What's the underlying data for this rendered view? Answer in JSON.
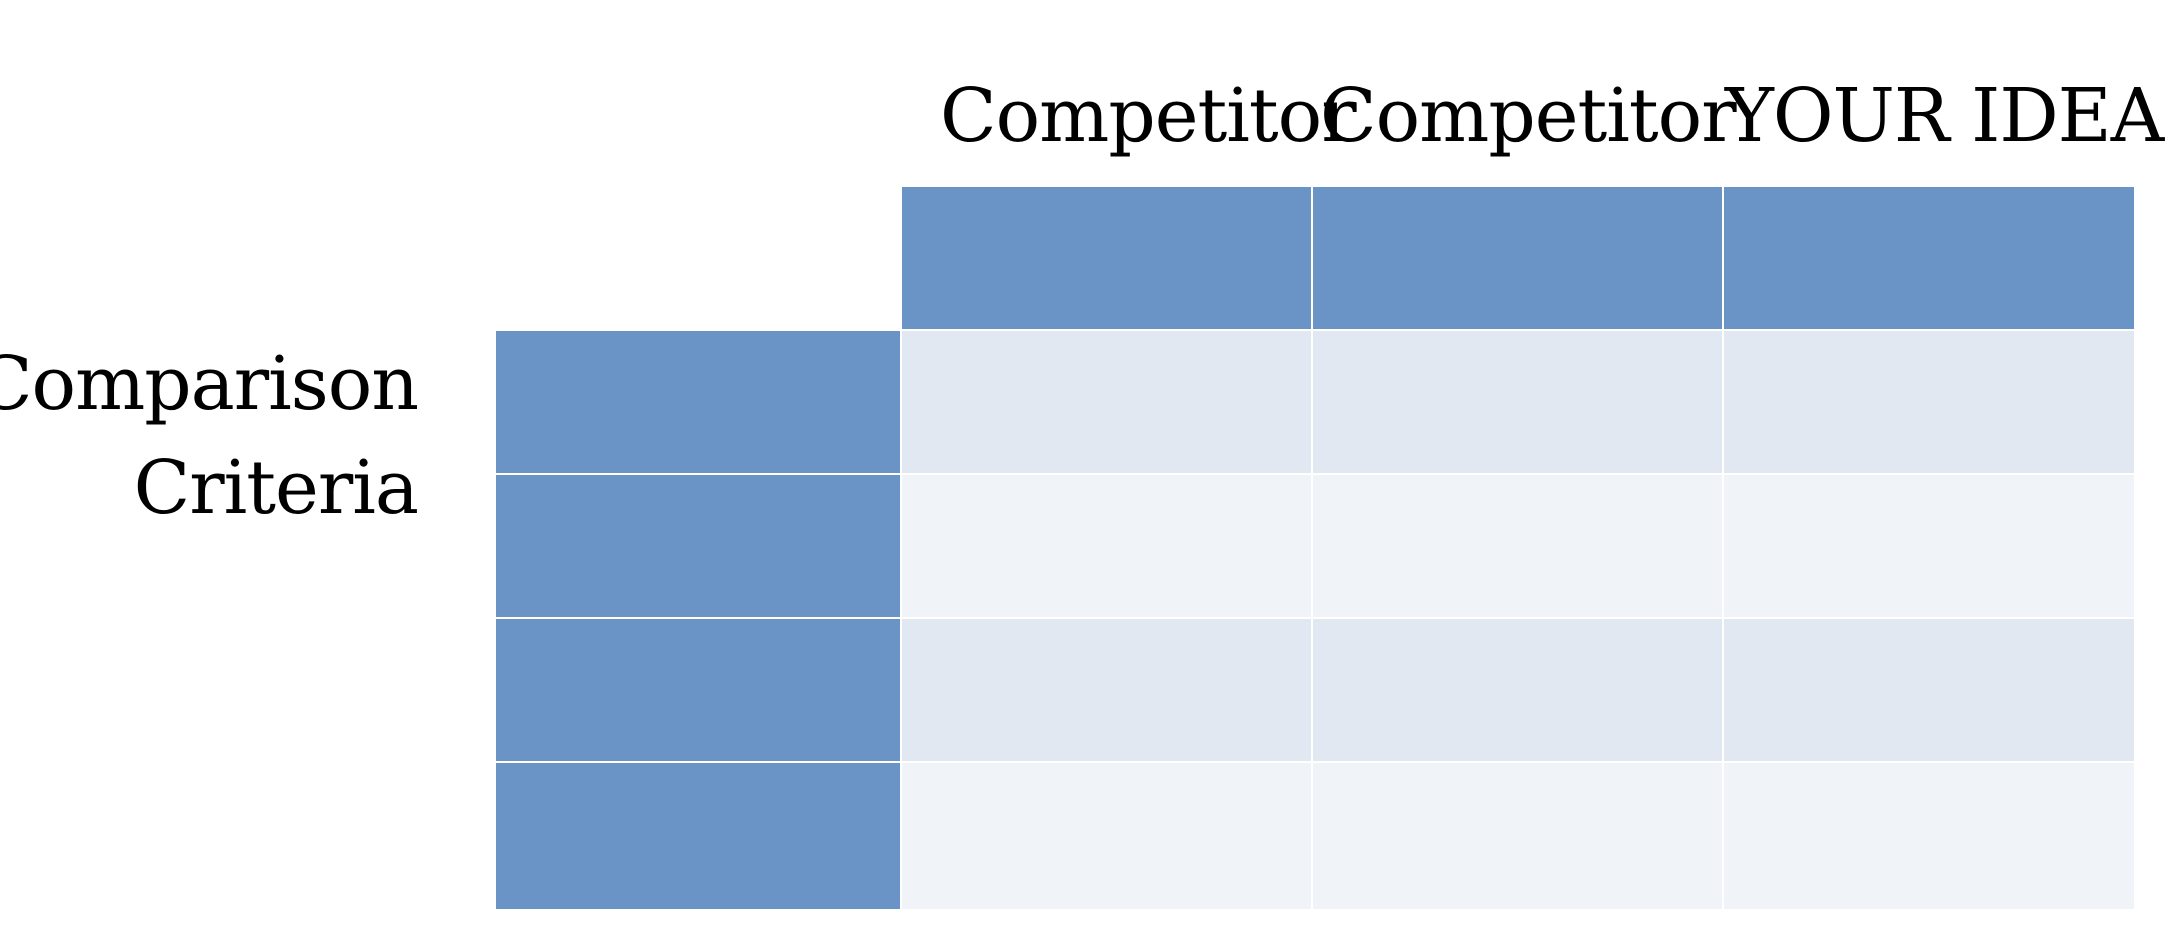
{
  "table": {
    "column_headers": [
      "Competitor",
      "Competitor",
      "YOUR IDEA"
    ],
    "row_label_lines": [
      "Comparison",
      "Criteria"
    ],
    "rows": [
      [
        "",
        "",
        ""
      ],
      [
        "",
        "",
        ""
      ],
      [
        "",
        "",
        ""
      ],
      [
        "",
        "",
        ""
      ]
    ]
  },
  "colors": {
    "header_fill": "#6a94c6",
    "band_a_fill": "#e2e8f2",
    "band_b_fill": "#f0f3f8",
    "text": "#000000"
  }
}
